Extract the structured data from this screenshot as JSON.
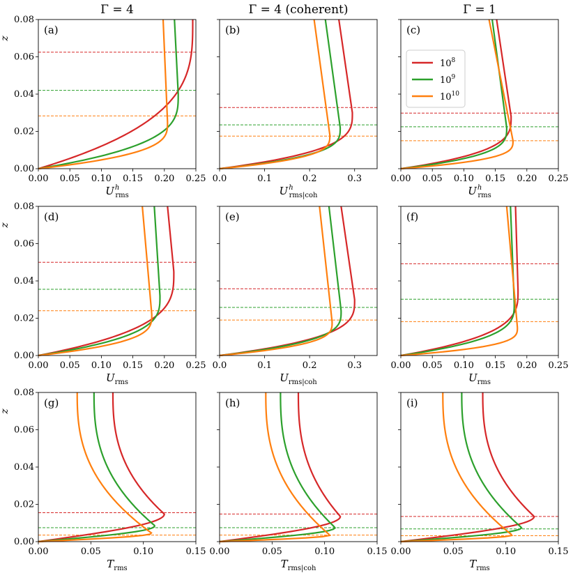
{
  "colors": {
    "Ra1e8": "#d62728",
    "Ra1e9": "#2ca02c",
    "Ra1e10": "#ff7f0e"
  },
  "column_titles": [
    "Γ = 4",
    "Γ = 4 (coherent)",
    "Γ = 1"
  ],
  "legend": {
    "placement": "upper-left of panel (c)",
    "entries": [
      {
        "base": "10",
        "exp": "8",
        "color_key": "Ra1e8"
      },
      {
        "base": "10",
        "exp": "9",
        "color_key": "Ra1e9"
      },
      {
        "base": "10",
        "exp": "10",
        "color_key": "Ra1e10"
      }
    ]
  },
  "ylabel": "z",
  "chart_data": [
    {
      "type": "line",
      "panel": "(a)",
      "xlabel": {
        "main": "U",
        "sup": "h",
        "sub": "rms",
        "suffix": ""
      },
      "xlim": [
        0,
        0.25
      ],
      "xticks": [
        "0.00",
        "0.05",
        "0.10",
        "0.15",
        "0.20",
        "0.25"
      ],
      "ylim": [
        0,
        0.08
      ],
      "yticks": [
        "0.00",
        "0.02",
        "0.04",
        "0.06",
        "0.08"
      ],
      "show_yticklabels": true,
      "shape": "u",
      "series": [
        {
          "name": "10^8",
          "peak": 0.245,
          "zpeak": 0.08,
          "top": 0.245,
          "hline": 0.0625
        },
        {
          "name": "10^9",
          "peak": 0.222,
          "zpeak": 0.04,
          "top": 0.216,
          "hline": 0.042
        },
        {
          "name": "10^10",
          "peak": 0.205,
          "zpeak": 0.025,
          "top": 0.198,
          "hline": 0.0283
        }
      ]
    },
    {
      "type": "line",
      "panel": "(b)",
      "xlabel": {
        "main": "U",
        "sup": "h",
        "sub": "rms",
        "suffix": "|coh"
      },
      "xlim": [
        0,
        0.35
      ],
      "xticks": [
        "0.0",
        "0.1",
        "0.2",
        "0.3"
      ],
      "ylim": [
        0,
        0.08
      ],
      "yticks": [
        "0.00",
        "0.02",
        "0.04",
        "0.06",
        "0.08"
      ],
      "show_yticklabels": false,
      "shape": "u",
      "series": [
        {
          "name": "10^8",
          "peak": 0.295,
          "zpeak": 0.03,
          "top": 0.265,
          "hline": 0.0328
        },
        {
          "name": "10^9",
          "peak": 0.268,
          "zpeak": 0.022,
          "top": 0.235,
          "hline": 0.0235
        },
        {
          "name": "10^10",
          "peak": 0.245,
          "zpeak": 0.018,
          "top": 0.21,
          "hline": 0.0175
        }
      ]
    },
    {
      "type": "line",
      "panel": "(c)",
      "xlabel": {
        "main": "U",
        "sup": "h",
        "sub": "rms",
        "suffix": ""
      },
      "xlim": [
        0,
        0.25
      ],
      "xticks": [
        "0.00",
        "0.05",
        "0.10",
        "0.15",
        "0.20",
        "0.25"
      ],
      "ylim": [
        0,
        0.08
      ],
      "yticks": [
        "0.00",
        "0.02",
        "0.04",
        "0.06",
        "0.08"
      ],
      "show_yticklabels": false,
      "shape": "u",
      "series": [
        {
          "name": "10^8",
          "peak": 0.175,
          "zpeak": 0.028,
          "top": 0.152,
          "hline": 0.0298
        },
        {
          "name": "10^9",
          "peak": 0.168,
          "zpeak": 0.022,
          "top": 0.145,
          "hline": 0.0225
        },
        {
          "name": "10^10",
          "peak": 0.178,
          "zpeak": 0.015,
          "top": 0.14,
          "hline": 0.015
        }
      ]
    },
    {
      "type": "line",
      "panel": "(d)",
      "xlabel": {
        "main": "U",
        "sup": "",
        "sub": "rms",
        "suffix": ""
      },
      "xlim": [
        0,
        0.25
      ],
      "xticks": [
        "0.00",
        "0.05",
        "0.10",
        "0.15",
        "0.20",
        "0.25"
      ],
      "ylim": [
        0,
        0.08
      ],
      "yticks": [
        "0.00",
        "0.02",
        "0.04",
        "0.06",
        "0.08"
      ],
      "show_yticklabels": true,
      "shape": "u",
      "series": [
        {
          "name": "10^8",
          "peak": 0.215,
          "zpeak": 0.045,
          "top": 0.205,
          "hline": 0.05
        },
        {
          "name": "10^9",
          "peak": 0.193,
          "zpeak": 0.032,
          "top": 0.184,
          "hline": 0.0355
        },
        {
          "name": "10^10",
          "peak": 0.18,
          "zpeak": 0.022,
          "top": 0.165,
          "hline": 0.024
        }
      ]
    },
    {
      "type": "line",
      "panel": "(e)",
      "xlabel": {
        "main": "U",
        "sup": "",
        "sub": "rms",
        "suffix": "|coh"
      },
      "xlim": [
        0,
        0.35
      ],
      "xticks": [
        "0.0",
        "0.1",
        "0.2",
        "0.3"
      ],
      "ylim": [
        0,
        0.08
      ],
      "yticks": [
        "0.00",
        "0.02",
        "0.04",
        "0.06",
        "0.08"
      ],
      "show_yticklabels": false,
      "shape": "u",
      "series": [
        {
          "name": "10^8",
          "peak": 0.3,
          "zpeak": 0.03,
          "top": 0.27,
          "hline": 0.0358
        },
        {
          "name": "10^9",
          "peak": 0.27,
          "zpeak": 0.024,
          "top": 0.243,
          "hline": 0.0258
        },
        {
          "name": "10^10",
          "peak": 0.25,
          "zpeak": 0.018,
          "top": 0.222,
          "hline": 0.019
        }
      ]
    },
    {
      "type": "line",
      "panel": "(f)",
      "xlabel": {
        "main": "U",
        "sup": "",
        "sub": "rms",
        "suffix": ""
      },
      "xlim": [
        0,
        0.25
      ],
      "xticks": [
        "0.00",
        "0.05",
        "0.10",
        "0.15",
        "0.20",
        "0.25"
      ],
      "ylim": [
        0,
        0.08
      ],
      "yticks": [
        "0.00",
        "0.02",
        "0.04",
        "0.06",
        "0.08"
      ],
      "show_yticklabels": false,
      "shape": "u",
      "series": [
        {
          "name": "10^8",
          "peak": 0.186,
          "zpeak": 0.035,
          "top": 0.182,
          "hline": 0.0492
        },
        {
          "name": "10^9",
          "peak": 0.18,
          "zpeak": 0.028,
          "top": 0.174,
          "hline": 0.0302
        },
        {
          "name": "10^10",
          "peak": 0.185,
          "zpeak": 0.015,
          "top": 0.168,
          "hline": 0.0182
        }
      ]
    },
    {
      "type": "line",
      "panel": "(g)",
      "xlabel": {
        "main": "T",
        "sup": "",
        "sub": "rms",
        "suffix": ""
      },
      "xlim": [
        0,
        0.15
      ],
      "xticks": [
        "0.00",
        "0.05",
        "0.10",
        "0.15"
      ],
      "ylim": [
        0,
        0.08
      ],
      "yticks": [
        "0.00",
        "0.02",
        "0.04",
        "0.06",
        "0.08"
      ],
      "show_yticklabels": true,
      "shape": "t",
      "series": [
        {
          "name": "10^8",
          "peak": 0.12,
          "zpeak": 0.0148,
          "top": 0.071,
          "hline": 0.0155
        },
        {
          "name": "10^9",
          "peak": 0.111,
          "zpeak": 0.0085,
          "top": 0.053,
          "hline": 0.0075
        },
        {
          "name": "10^10",
          "peak": 0.108,
          "zpeak": 0.0045,
          "top": 0.037,
          "hline": 0.0035
        }
      ]
    },
    {
      "type": "line",
      "panel": "(h)",
      "xlabel": {
        "main": "T",
        "sup": "",
        "sub": "rms",
        "suffix": "|coh"
      },
      "xlim": [
        0,
        0.15
      ],
      "xticks": [
        "0.00",
        "0.05",
        "0.10",
        "0.15"
      ],
      "ylim": [
        0,
        0.08
      ],
      "yticks": [
        "0.00",
        "0.02",
        "0.04",
        "0.06",
        "0.08"
      ],
      "show_yticklabels": false,
      "shape": "t",
      "series": [
        {
          "name": "10^8",
          "peak": 0.115,
          "zpeak": 0.0135,
          "top": 0.075,
          "hline": 0.0148
        },
        {
          "name": "10^9",
          "peak": 0.11,
          "zpeak": 0.0075,
          "top": 0.058,
          "hline": 0.0075
        },
        {
          "name": "10^10",
          "peak": 0.105,
          "zpeak": 0.0035,
          "top": 0.044,
          "hline": 0.0035
        }
      ]
    },
    {
      "type": "line",
      "panel": "(i)",
      "xlabel": {
        "main": "T",
        "sup": "",
        "sub": "rms",
        "suffix": ""
      },
      "xlim": [
        0,
        0.15
      ],
      "xticks": [
        "0.00",
        "0.05",
        "0.10",
        "0.15"
      ],
      "ylim": [
        0,
        0.08
      ],
      "yticks": [
        "0.00",
        "0.02",
        "0.04",
        "0.06",
        "0.08"
      ],
      "show_yticklabels": false,
      "shape": "t",
      "series": [
        {
          "name": "10^8",
          "peak": 0.127,
          "zpeak": 0.0135,
          "top": 0.078,
          "hline": 0.0135
        },
        {
          "name": "10^9",
          "peak": 0.115,
          "zpeak": 0.0075,
          "top": 0.058,
          "hline": 0.0068
        },
        {
          "name": "10^10",
          "peak": 0.106,
          "zpeak": 0.0035,
          "top": 0.04,
          "hline": 0.0032
        }
      ]
    }
  ]
}
